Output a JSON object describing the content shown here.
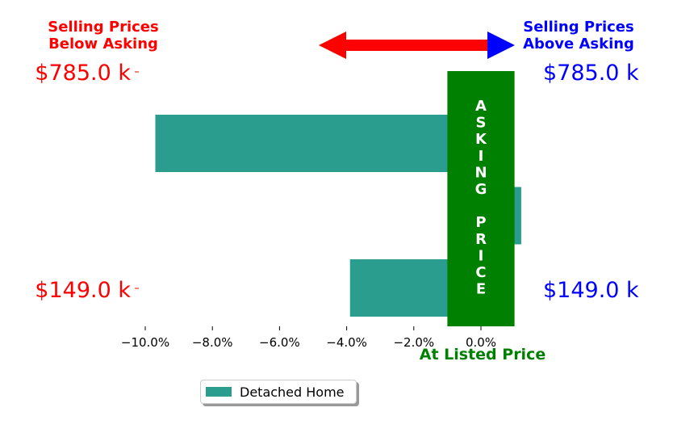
{
  "chart_data": {
    "type": "bar",
    "orientation": "horizontal",
    "series": [
      {
        "name": "Detached Home",
        "color": "#2a9d8f",
        "values": [
          -9.7,
          1.2,
          -3.9
        ]
      }
    ],
    "xlim": [
      -12.0,
      1.25
    ],
    "xticks": [
      -10.0,
      -8.0,
      -6.0,
      -4.0,
      -2.0,
      0.0
    ],
    "xtick_labels": [
      "−10.0%",
      "−8.0%",
      "−6.0%",
      "−4.0%",
      "−2.0%",
      "0.0%"
    ],
    "price_labels_left": [
      "$785.0 k",
      "$149.0 k"
    ],
    "price_labels_right": [
      "$785.0 k",
      "$149.0 k"
    ],
    "below_title_lines": [
      "Selling Prices",
      "Below Asking"
    ],
    "above_title_lines": [
      "Selling Prices",
      "Above Asking"
    ],
    "asking_letters": [
      "A",
      "S",
      "K",
      "I",
      "N",
      "G",
      "",
      "P",
      "R",
      "I",
      "C",
      "E"
    ],
    "listed_label": "At Listed Price",
    "asking_band_range": [
      -1.0,
      1.0
    ],
    "colors": {
      "below": "#ff0000",
      "above": "#0000ff",
      "asking": "#008000",
      "arrow": "#ff0000",
      "arrow_right_head": "#0000ff"
    },
    "grid": false,
    "legend_position": "bottom-left"
  }
}
